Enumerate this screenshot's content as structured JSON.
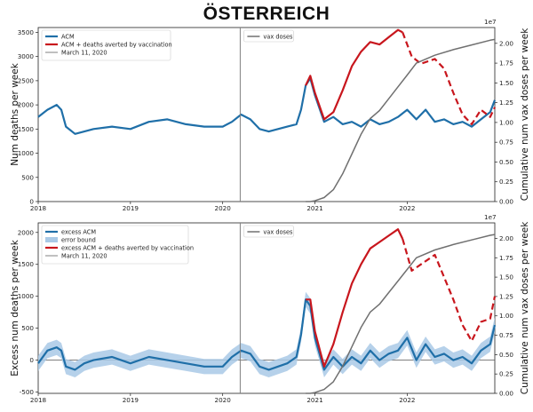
{
  "title": "ÖSTERREICH",
  "colors": {
    "acm": "#1f6fa8",
    "vax": "#707070",
    "averted": "#c8161d",
    "band": "#a9c9e6",
    "march": "#808080"
  },
  "chart_data": [
    {
      "type": "line",
      "ylabel": "Num deaths per week",
      "y2label": "Cumulative num vax doses per week",
      "y2_multiplier": "1e7",
      "xlim": [
        2018.0,
        2022.95
      ],
      "ylim": [
        0,
        3600
      ],
      "y2lim": [
        0,
        2.2
      ],
      "x_ticks": [
        "2018",
        "2019",
        "2020",
        "2021",
        "2022"
      ],
      "y_ticks": [
        "0",
        "500",
        "1000",
        "1500",
        "2000",
        "2500",
        "3000",
        "3500"
      ],
      "y2_ticks": [
        "0.00",
        "0.25",
        "0.50",
        "0.75",
        "1.00",
        "1.25",
        "1.50",
        "1.75",
        "2.00"
      ],
      "grid": false,
      "legend_left_placement": "top-left",
      "legend_right_placement": "top-left of right panel",
      "vline_x": 2020.19,
      "legend_left": [
        "ACM",
        "ACM + deaths averted by vaccination",
        "March 11, 2020"
      ],
      "legend_right": [
        "vax doses"
      ],
      "series": [
        {
          "name": "ACM",
          "style": "solid",
          "x": [
            2018.0,
            2018.1,
            2018.2,
            2018.25,
            2018.3,
            2018.4,
            2018.5,
            2018.6,
            2018.8,
            2019.0,
            2019.2,
            2019.4,
            2019.6,
            2019.8,
            2020.0,
            2020.1,
            2020.2,
            2020.3,
            2020.4,
            2020.5,
            2020.6,
            2020.7,
            2020.8,
            2020.85,
            2020.9,
            2020.95,
            2021.0,
            2021.1,
            2021.2,
            2021.3,
            2021.4,
            2021.5,
            2021.6,
            2021.7,
            2021.8,
            2021.9,
            2022.0,
            2022.1,
            2022.2,
            2022.3,
            2022.4,
            2022.5,
            2022.6,
            2022.7,
            2022.8,
            2022.9,
            2022.95
          ],
          "values": [
            1750,
            1900,
            2000,
            1900,
            1550,
            1400,
            1450,
            1500,
            1550,
            1500,
            1650,
            1700,
            1600,
            1550,
            1550,
            1650,
            1800,
            1700,
            1500,
            1450,
            1500,
            1550,
            1600,
            1900,
            2400,
            2550,
            2200,
            1650,
            1750,
            1600,
            1650,
            1550,
            1700,
            1600,
            1650,
            1750,
            1900,
            1700,
            1900,
            1650,
            1700,
            1600,
            1650,
            1550,
            1700,
            1850,
            2100
          ]
        },
        {
          "name": "ACM + deaths averted by vaccination",
          "style": "solid",
          "x": [
            2020.9,
            2020.95,
            2021.0,
            2021.1,
            2021.2,
            2021.3,
            2021.4,
            2021.5,
            2021.6,
            2021.7,
            2021.8,
            2021.9,
            2021.95
          ],
          "values": [
            2400,
            2600,
            2250,
            1700,
            1850,
            2300,
            2800,
            3100,
            3300,
            3250,
            3400,
            3550,
            3500
          ]
        },
        {
          "name": "ACM + deaths averted by vaccination (projected)",
          "style": "dashed",
          "x": [
            2021.95,
            2022.05,
            2022.15,
            2022.3,
            2022.4,
            2022.5,
            2022.6,
            2022.7,
            2022.8,
            2022.9,
            2022.95
          ],
          "values": [
            3500,
            3000,
            2850,
            2950,
            2750,
            2250,
            1800,
            1600,
            1900,
            1750,
            1950
          ]
        },
        {
          "name": "vax doses",
          "axis": "right",
          "style": "solid",
          "x": [
            2020.9,
            2020.95,
            2021.0,
            2021.1,
            2021.2,
            2021.3,
            2021.4,
            2021.5,
            2021.6,
            2021.7,
            2021.8,
            2021.9,
            2022.0,
            2022.1,
            2022.3,
            2022.5,
            2022.7,
            2022.9,
            2022.95
          ],
          "values": [
            0.0,
            0.0,
            0.01,
            0.05,
            0.15,
            0.35,
            0.6,
            0.85,
            1.05,
            1.15,
            1.3,
            1.45,
            1.6,
            1.75,
            1.85,
            1.92,
            1.98,
            2.04,
            2.05
          ]
        }
      ]
    },
    {
      "type": "line",
      "ylabel": "Excess num deaths per week",
      "y2label": "Cumulative num vax doses per week",
      "y2_multiplier": "1e7",
      "xlim": [
        2018.0,
        2022.95
      ],
      "ylim": [
        -520,
        2150
      ],
      "y2lim": [
        0,
        2.2
      ],
      "x_ticks": [
        "2018",
        "2019",
        "2020",
        "2021",
        "2022"
      ],
      "y_ticks": [
        "-500",
        "0",
        "500",
        "1000",
        "1500",
        "2000"
      ],
      "y2_ticks": [
        "0.00",
        "0.25",
        "0.50",
        "0.75",
        "1.00",
        "1.25",
        "1.50",
        "1.75",
        "2.00"
      ],
      "grid": false,
      "legend_left_placement": "top-left",
      "legend_right_placement": "top-left of right panel",
      "vline_x": 2020.19,
      "legend_left": [
        "excess ACM",
        "error bound",
        "excess ACM + deaths averted by vaccination",
        "March 11, 2020"
      ],
      "legend_right": [
        "vax doses"
      ],
      "series": [
        {
          "name": "excess ACM",
          "style": "solid",
          "x": [
            2018.0,
            2018.1,
            2018.2,
            2018.25,
            2018.3,
            2018.4,
            2018.5,
            2018.6,
            2018.8,
            2019.0,
            2019.2,
            2019.4,
            2019.6,
            2019.8,
            2020.0,
            2020.1,
            2020.2,
            2020.3,
            2020.4,
            2020.5,
            2020.6,
            2020.7,
            2020.8,
            2020.85,
            2020.9,
            2020.95,
            2021.0,
            2021.1,
            2021.2,
            2021.3,
            2021.4,
            2021.5,
            2021.6,
            2021.7,
            2021.8,
            2021.9,
            2022.0,
            2022.1,
            2022.2,
            2022.3,
            2022.4,
            2022.5,
            2022.6,
            2022.7,
            2022.8,
            2022.9,
            2022.95
          ],
          "values": [
            -50,
            150,
            200,
            150,
            -100,
            -150,
            -50,
            0,
            50,
            -50,
            50,
            0,
            -50,
            -100,
            -100,
            50,
            150,
            100,
            -100,
            -150,
            -100,
            -50,
            50,
            400,
            950,
            850,
            350,
            -150,
            50,
            -100,
            50,
            -50,
            150,
            0,
            100,
            150,
            350,
            0,
            250,
            50,
            100,
            0,
            50,
            -50,
            150,
            250,
            550
          ]
        },
        {
          "name": "error bound",
          "style": "band",
          "half_width": 120,
          "x": [
            2018.0,
            2022.95
          ]
        },
        {
          "name": "excess ACM + deaths averted by vaccination",
          "style": "solid",
          "x": [
            2020.9,
            2020.95,
            2021.0,
            2021.1,
            2021.2,
            2021.3,
            2021.4,
            2021.5,
            2021.6,
            2021.7,
            2021.8,
            2021.9,
            2021.95
          ],
          "values": [
            950,
            950,
            450,
            -100,
            250,
            750,
            1200,
            1500,
            1750,
            1850,
            1950,
            2050,
            1900
          ]
        },
        {
          "name": "excess ACM + deaths averted by vaccination (projected)",
          "style": "dashed",
          "x": [
            2021.95,
            2022.05,
            2022.15,
            2022.3,
            2022.4,
            2022.5,
            2022.6,
            2022.7,
            2022.8,
            2022.9,
            2022.95
          ],
          "values": [
            1900,
            1400,
            1500,
            1650,
            1300,
            950,
            550,
            300,
            600,
            650,
            1000
          ]
        },
        {
          "name": "vax doses",
          "axis": "right",
          "style": "solid",
          "x": [
            2020.9,
            2020.95,
            2021.0,
            2021.1,
            2021.2,
            2021.3,
            2021.4,
            2021.5,
            2021.6,
            2021.7,
            2021.8,
            2021.9,
            2022.0,
            2022.1,
            2022.3,
            2022.5,
            2022.7,
            2022.9,
            2022.95
          ],
          "values": [
            0.0,
            0.0,
            0.01,
            0.05,
            0.15,
            0.35,
            0.6,
            0.85,
            1.05,
            1.15,
            1.3,
            1.45,
            1.6,
            1.75,
            1.85,
            1.92,
            1.98,
            2.04,
            2.05
          ]
        }
      ]
    }
  ]
}
